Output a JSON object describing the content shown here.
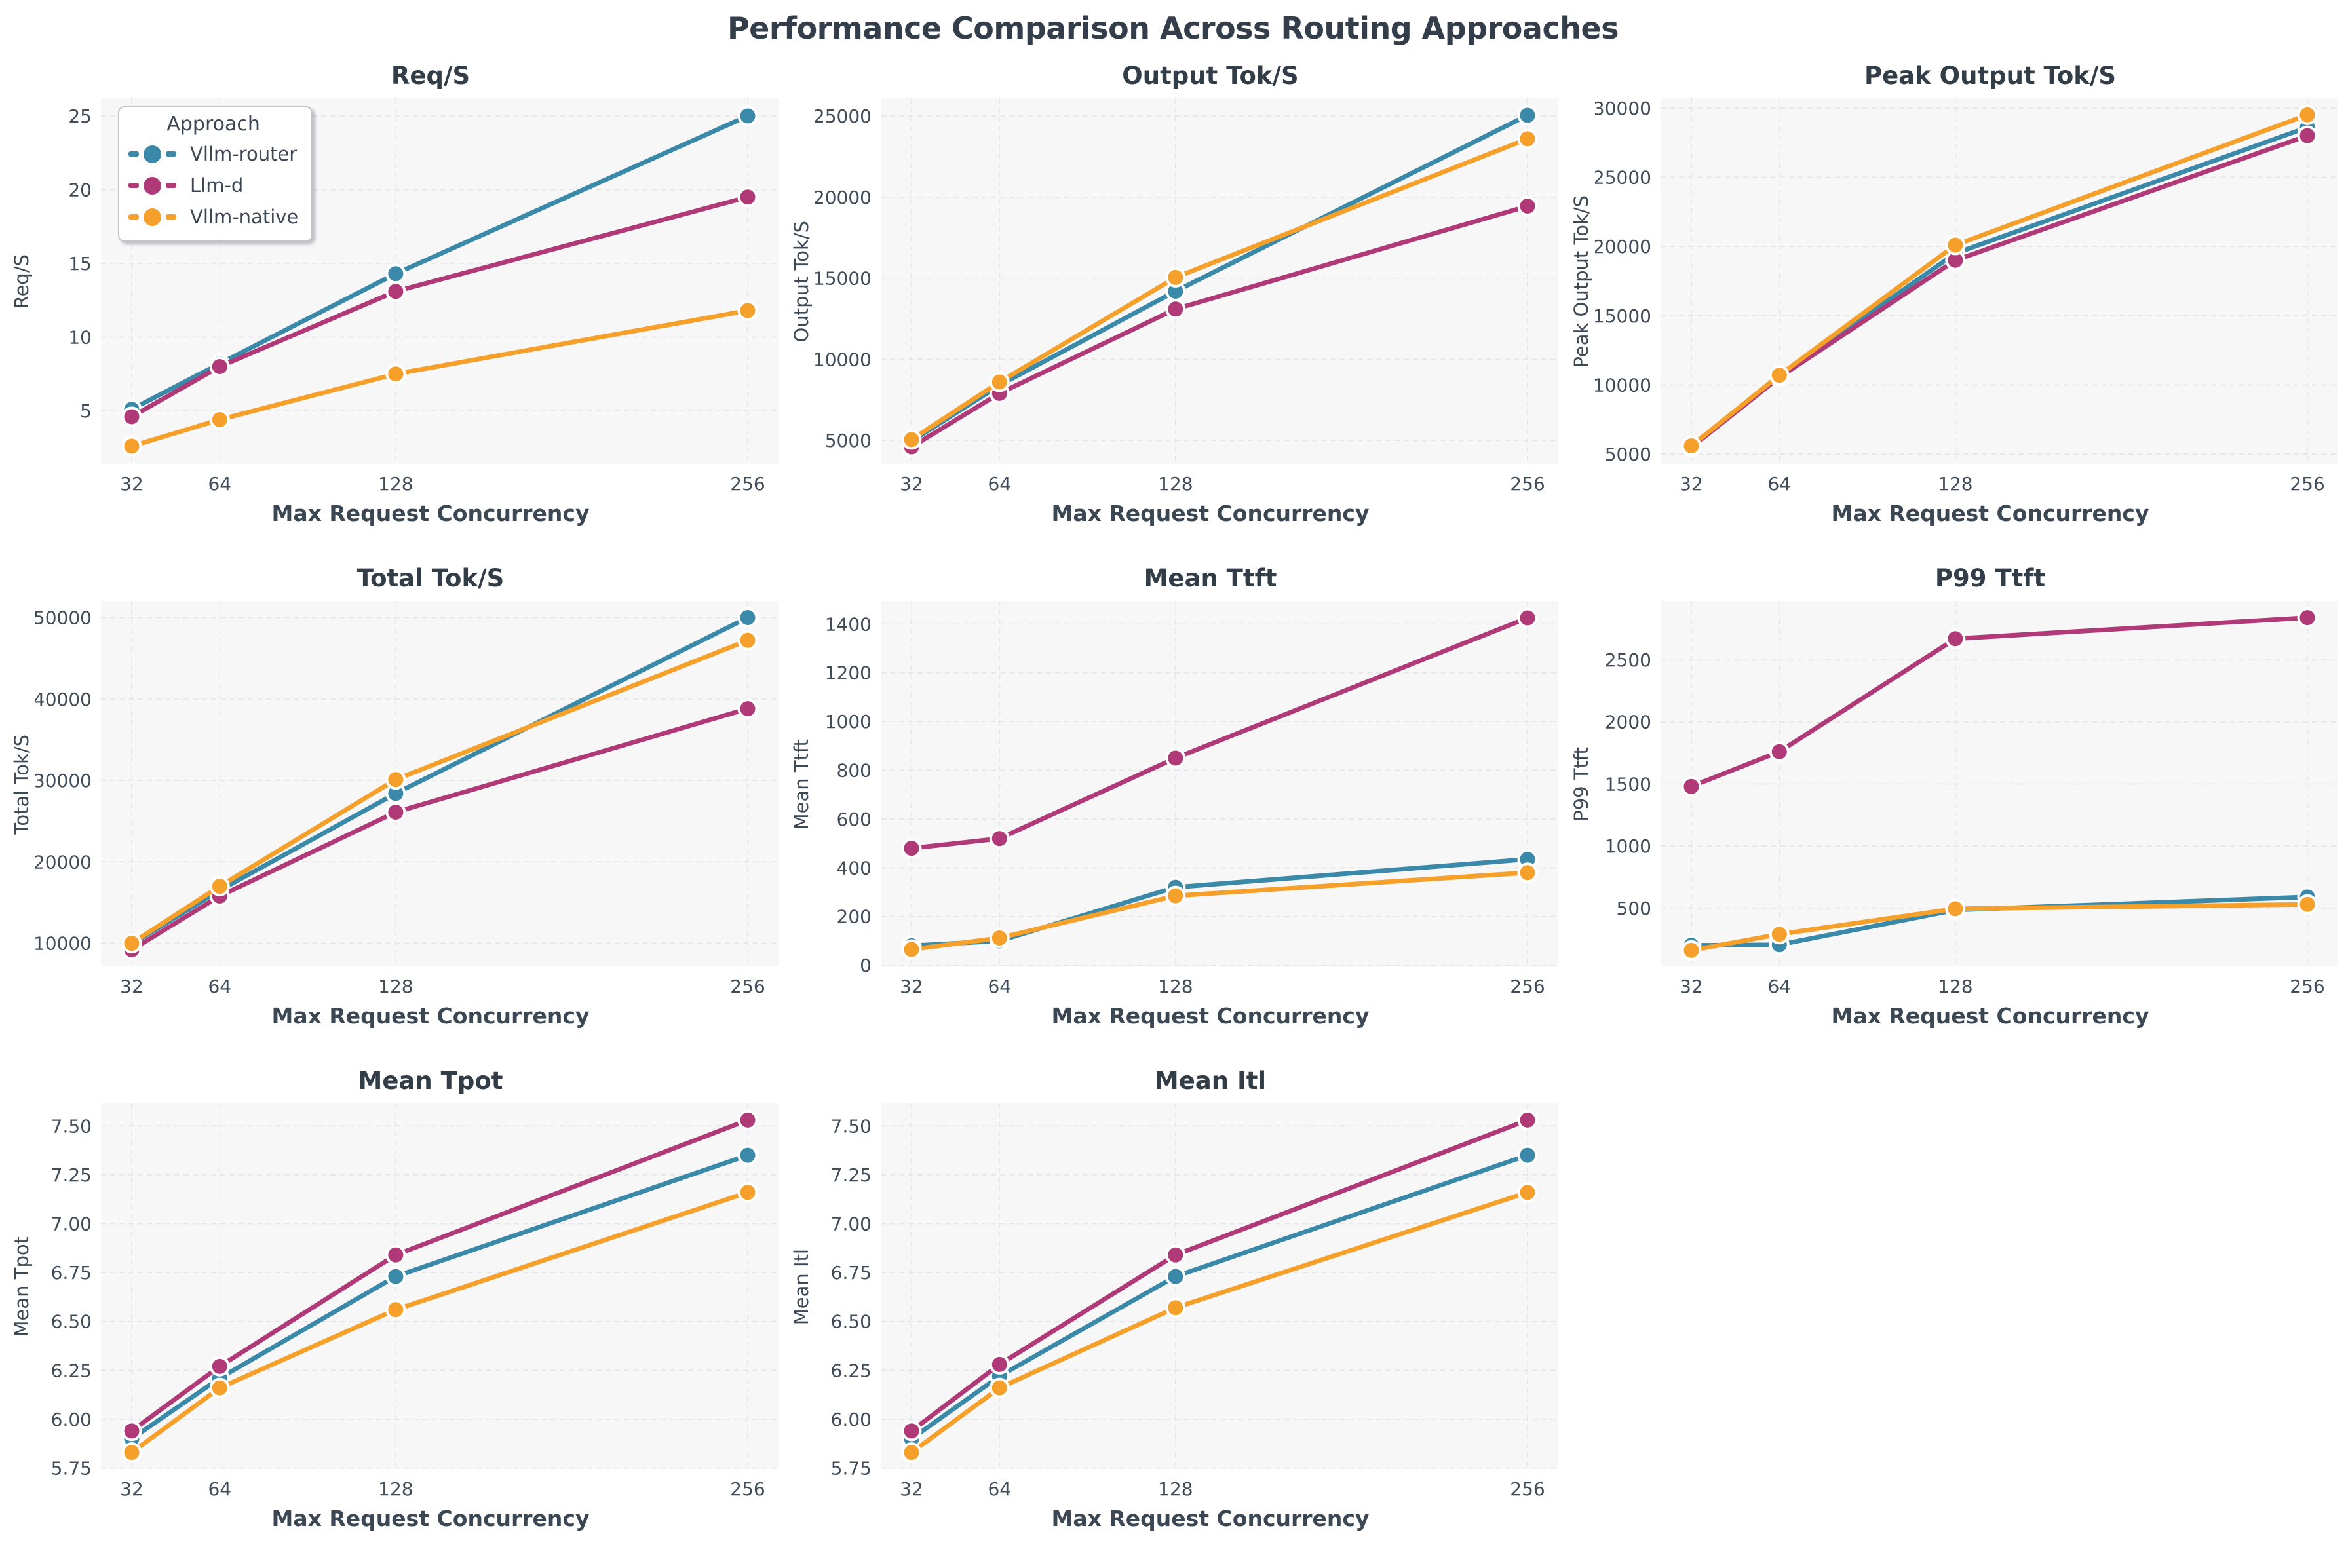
{
  "page_title": "Performance Comparison Across Routing Approaches",
  "legend": {
    "title": "Approach",
    "entries": [
      {
        "label": "Vllm-router",
        "color": "#3b89a9"
      },
      {
        "label": "Llm-d",
        "color": "#b03a78"
      },
      {
        "label": "Vllm-native",
        "color": "#f5a02b"
      }
    ]
  },
  "style": {
    "plot_bg": "#f7f7f8",
    "grid_color": "#e4e4e9",
    "tick_color": "#414c59",
    "title_color": "#333d48",
    "marker_edge": "#ffffff"
  },
  "axis": {
    "xlabel": "Max Request Concurrency",
    "xticks": [
      32,
      64,
      128,
      256
    ],
    "xtick_labels": [
      "32",
      "64",
      "128",
      "256"
    ],
    "xlim": [
      20.8,
      267.2
    ]
  },
  "chart_data": [
    {
      "type": "line",
      "title": "Req/S",
      "ylabel": "Req/S",
      "xlabel": "Max Request Concurrency",
      "x": [
        32,
        64,
        128,
        256
      ],
      "series": [
        {
          "name": "Vllm-router",
          "values": [
            5.1,
            8.2,
            14.3,
            25.0
          ]
        },
        {
          "name": "Llm-d",
          "values": [
            4.6,
            8.0,
            13.1,
            19.5
          ]
        },
        {
          "name": "Vllm-native",
          "values": [
            2.6,
            4.4,
            7.5,
            11.8
          ]
        }
      ],
      "yticks": [
        5,
        10,
        15,
        20,
        25
      ],
      "ytick_labels": [
        "5",
        "10",
        "15",
        "20",
        "25"
      ],
      "ylim": [
        1.4,
        26.2
      ],
      "grid": true,
      "legend": true,
      "legend_position": "upper-left"
    },
    {
      "type": "line",
      "title": "Output Tok/S",
      "ylabel": "Output Tok/S",
      "xlabel": "Max Request Concurrency",
      "x": [
        32,
        64,
        128,
        256
      ],
      "series": [
        {
          "name": "Vllm-router",
          "values": [
            4950,
            8400,
            14200,
            25050
          ]
        },
        {
          "name": "Llm-d",
          "values": [
            4600,
            7900,
            13100,
            19450
          ]
        },
        {
          "name": "Vllm-native",
          "values": [
            5050,
            8600,
            15050,
            23600
          ]
        }
      ],
      "yticks": [
        5000,
        10000,
        15000,
        20000,
        25000
      ],
      "ytick_labels": [
        "5000",
        "10000",
        "15000",
        "20000",
        "25000"
      ],
      "ylim": [
        3550,
        26100
      ],
      "grid": true,
      "legend": false
    },
    {
      "type": "line",
      "title": "Peak Output Tok/S",
      "ylabel": "Peak Output Tok/S",
      "xlabel": "Max Request Concurrency",
      "x": [
        32,
        64,
        128,
        256
      ],
      "series": [
        {
          "name": "Vllm-router",
          "values": [
            5550,
            10600,
            19500,
            28600
          ]
        },
        {
          "name": "Llm-d",
          "values": [
            5500,
            10550,
            19000,
            28000
          ]
        },
        {
          "name": "Vllm-native",
          "values": [
            5600,
            10700,
            20100,
            29500
          ]
        }
      ],
      "yticks": [
        5000,
        10000,
        15000,
        20000,
        25000,
        30000
      ],
      "ytick_labels": [
        "5000",
        "10000",
        "15000",
        "20000",
        "25000",
        "30000"
      ],
      "ylim": [
        4300,
        30700
      ],
      "grid": true,
      "legend": false
    },
    {
      "type": "line",
      "title": "Total Tok/S",
      "ylabel": "Total Tok/S",
      "xlabel": "Max Request Concurrency",
      "x": [
        32,
        64,
        128,
        256
      ],
      "series": [
        {
          "name": "Vllm-router",
          "values": [
            9900,
            16500,
            28400,
            50000
          ]
        },
        {
          "name": "Llm-d",
          "values": [
            9200,
            15800,
            26100,
            38800
          ]
        },
        {
          "name": "Vllm-native",
          "values": [
            10000,
            17000,
            30100,
            47200
          ]
        }
      ],
      "yticks": [
        10000,
        20000,
        30000,
        40000,
        50000
      ],
      "ytick_labels": [
        "10000",
        "20000",
        "30000",
        "40000",
        "50000"
      ],
      "ylim": [
        7150,
        52050
      ],
      "grid": true,
      "legend": false
    },
    {
      "type": "line",
      "title": "Mean Ttft",
      "ylabel": "Mean Ttft",
      "xlabel": "Max Request Concurrency",
      "x": [
        32,
        64,
        128,
        256
      ],
      "series": [
        {
          "name": "Vllm-router",
          "values": [
            80,
            100,
            320,
            435
          ]
        },
        {
          "name": "Llm-d",
          "values": [
            480,
            520,
            850,
            1425
          ]
        },
        {
          "name": "Vllm-native",
          "values": [
            65,
            112,
            285,
            380
          ]
        }
      ],
      "yticks": [
        0,
        200,
        400,
        600,
        800,
        1000,
        1200,
        1400
      ],
      "ytick_labels": [
        "0",
        "200",
        "400",
        "600",
        "800",
        "1000",
        "1200",
        "1400"
      ],
      "ylim": [
        -5,
        1495
      ],
      "grid": true,
      "legend": false
    },
    {
      "type": "line",
      "title": "P99 Ttft",
      "ylabel": "P99 Ttft",
      "xlabel": "Max Request Concurrency",
      "x": [
        32,
        64,
        128,
        256
      ],
      "series": [
        {
          "name": "Vllm-router",
          "values": [
            200,
            205,
            485,
            590
          ]
        },
        {
          "name": "Llm-d",
          "values": [
            1480,
            1760,
            2670,
            2840
          ]
        },
        {
          "name": "Vllm-native",
          "values": [
            160,
            290,
            495,
            530
          ]
        }
      ],
      "yticks": [
        500,
        1000,
        1500,
        2000,
        2500
      ],
      "ytick_labels": [
        "500",
        "1000",
        "1500",
        "2000",
        "2500"
      ],
      "ylim": [
        30,
        2975
      ],
      "grid": true,
      "legend": false
    },
    {
      "type": "line",
      "title": "Mean Tpot",
      "ylabel": "Mean Tpot",
      "xlabel": "Max Request Concurrency",
      "x": [
        32,
        64,
        128,
        256
      ],
      "series": [
        {
          "name": "Vllm-router",
          "values": [
            5.9,
            6.21,
            6.73,
            7.35
          ]
        },
        {
          "name": "Llm-d",
          "values": [
            5.94,
            6.27,
            6.84,
            7.53
          ]
        },
        {
          "name": "Vllm-native",
          "values": [
            5.83,
            6.16,
            6.56,
            7.16
          ]
        }
      ],
      "yticks": [
        5.75,
        6.0,
        6.25,
        6.5,
        6.75,
        7.0,
        7.25,
        7.5
      ],
      "ytick_labels": [
        "5.75",
        "6.00",
        "6.25",
        "6.50",
        "6.75",
        "7.00",
        "7.25",
        "7.50"
      ],
      "ylim": [
        5.745,
        7.615
      ],
      "grid": true,
      "legend": false
    },
    {
      "type": "line",
      "title": "Mean Itl",
      "ylabel": "Mean Itl",
      "xlabel": "Max Request Concurrency",
      "x": [
        32,
        64,
        128,
        256
      ],
      "series": [
        {
          "name": "Vllm-router",
          "values": [
            5.9,
            6.22,
            6.73,
            7.35
          ]
        },
        {
          "name": "Llm-d",
          "values": [
            5.94,
            6.28,
            6.84,
            7.53
          ]
        },
        {
          "name": "Vllm-native",
          "values": [
            5.83,
            6.16,
            6.57,
            7.16
          ]
        }
      ],
      "yticks": [
        5.75,
        6.0,
        6.25,
        6.5,
        6.75,
        7.0,
        7.25,
        7.5
      ],
      "ytick_labels": [
        "5.75",
        "6.00",
        "6.25",
        "6.50",
        "6.75",
        "7.00",
        "7.25",
        "7.50"
      ],
      "ylim": [
        5.745,
        7.615
      ],
      "grid": true,
      "legend": false
    }
  ]
}
